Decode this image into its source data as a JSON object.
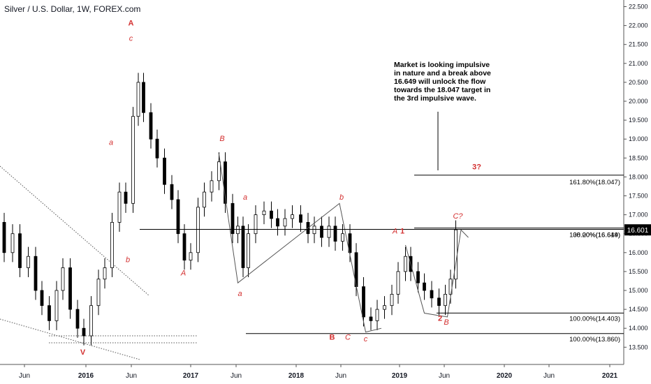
{
  "chart_data": {
    "type": "candlestick",
    "title": "Silver / U.S. Dollar, 1W, FOREX.com",
    "y_ticks": [
      "22.500",
      "22.000",
      "21.500",
      "21.000",
      "20.500",
      "20.000",
      "19.500",
      "19.000",
      "18.500",
      "18.000",
      "17.500",
      "17.000",
      "16.500",
      "16.000",
      "15.500",
      "15.000",
      "14.500",
      "14.000",
      "13.500"
    ],
    "x_ticks": [
      "Jun",
      "2016",
      "Jun",
      "2017",
      "Jun",
      "2018",
      "Jun",
      "2019",
      "Jun",
      "2020",
      "Jun",
      "2021"
    ],
    "current_price": "16.601",
    "annotation": [
      "Market is looking impulsive",
      "in nature and a break above",
      "16.649 will unlock the flow",
      "towards the 18.047 target in",
      "the 3rd impulsive wave."
    ],
    "levels": [
      {
        "label": "161.80%(18.047)",
        "value": 18.047
      },
      {
        "label": "38.20%(16.649)",
        "value": 16.649
      },
      {
        "label": "100.00%(16.614)",
        "value": 16.614
      },
      {
        "label": "100.00%(14.403)",
        "value": 14.403
      },
      {
        "label": "100.00%(13.860)",
        "value": 13.86
      }
    ],
    "wave_labels": [
      {
        "text": "A",
        "style": "bold",
        "t": 2016.43,
        "p": 22.0
      },
      {
        "text": "c",
        "style": "italic",
        "t": 2016.43,
        "p": 21.6
      },
      {
        "text": "a",
        "style": "italic",
        "t": 2016.24,
        "p": 18.85
      },
      {
        "text": "b",
        "style": "italic",
        "t": 2016.4,
        "p": 15.75
      },
      {
        "text": "V",
        "style": "bold",
        "t": 2015.97,
        "p": 13.3
      },
      {
        "text": "B",
        "style": "italic",
        "t": 2017.3,
        "p": 18.95
      },
      {
        "text": "a",
        "style": "italic",
        "t": 2017.52,
        "p": 17.4
      },
      {
        "text": "A",
        "style": "italic",
        "t": 2016.93,
        "p": 15.4
      },
      {
        "text": "a",
        "style": "italic",
        "t": 2017.47,
        "p": 14.85
      },
      {
        "text": "b",
        "style": "italic",
        "t": 2018.44,
        "p": 17.4
      },
      {
        "text": "B",
        "style": "bold",
        "t": 2018.35,
        "p": 13.7
      },
      {
        "text": "C",
        "style": "italic",
        "t": 2018.5,
        "p": 13.7
      },
      {
        "text": "c",
        "style": "italic",
        "t": 2018.67,
        "p": 13.65
      },
      {
        "text": "A",
        "style": "italic",
        "t": 2018.95,
        "p": 16.5
      },
      {
        "text": "1",
        "style": "bold",
        "t": 2019.02,
        "p": 16.5
      },
      {
        "text": "2",
        "style": "bold",
        "t": 2019.38,
        "p": 14.2
      },
      {
        "text": "B",
        "style": "italic",
        "t": 2019.44,
        "p": 14.1
      },
      {
        "text": "C?",
        "style": "italic",
        "t": 2019.55,
        "p": 16.9
      },
      {
        "text": "3?",
        "style": "bold",
        "t": 2019.73,
        "p": 18.2
      }
    ],
    "colors": {
      "up": "#000000",
      "down": "#000000",
      "wave_label": "#d32f2f",
      "line": "#000000",
      "price_tag": "#000000"
    }
  }
}
